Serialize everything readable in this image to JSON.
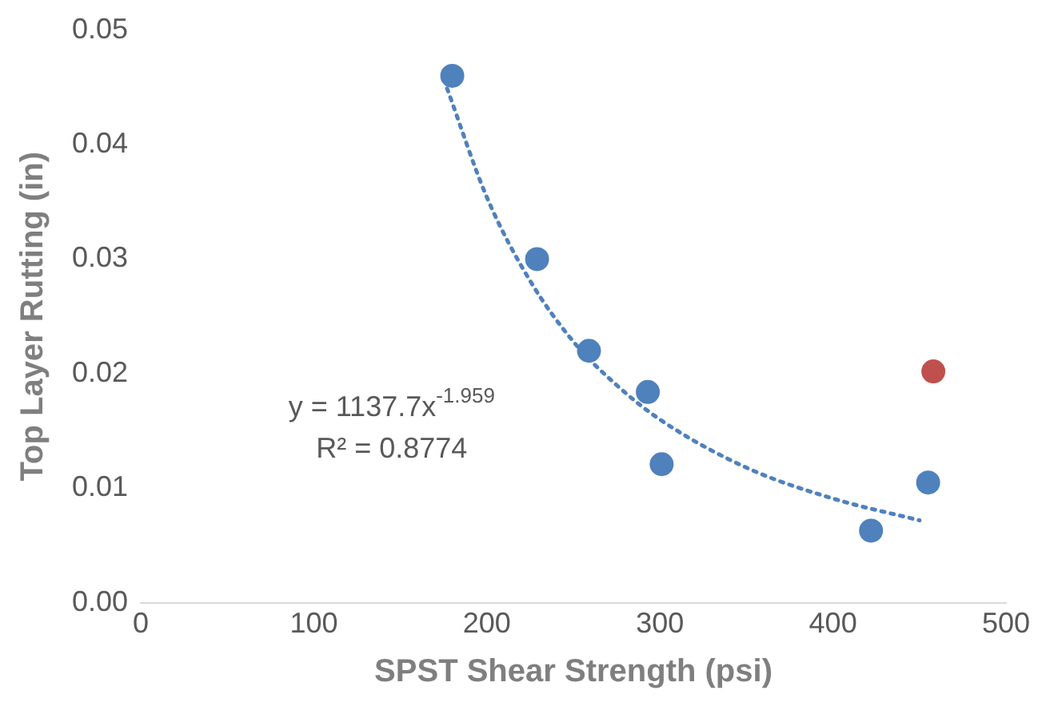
{
  "chart_data": {
    "type": "scatter",
    "xlabel": "SPST Shear Strength (psi)",
    "ylabel": "Top Layer Rutting (in)",
    "xlim": [
      0,
      500
    ],
    "xticks": [
      0,
      100,
      200,
      300,
      400,
      500
    ],
    "ylim": [
      0,
      0.05
    ],
    "yticks": [
      {
        "value": 0,
        "label": "0.00"
      },
      {
        "value": 0.01,
        "label": "0.01"
      },
      {
        "value": 0.02,
        "label": "0.02"
      },
      {
        "value": 0.03,
        "label": "0.03"
      },
      {
        "value": 0.04,
        "label": "0.04"
      },
      {
        "value": 0.05,
        "label": "0.05"
      }
    ],
    "grid": false,
    "legend": false,
    "marker": "circle",
    "series": [
      {
        "color": "#4f81bd",
        "x": [
          180,
          229,
          259,
          293,
          301,
          422,
          455
        ],
        "values": [
          0.046,
          0.03,
          0.022,
          0.0184,
          0.0121,
          0.0063,
          0.0105
        ]
      },
      {
        "color": "#c0504d",
        "x": [
          458
        ],
        "values": [
          0.0202
        ]
      },
      {
        "type": "line",
        "line_style": "dotted",
        "marker": "none",
        "color": "#4f81bd",
        "x": [
          177,
          200,
          225,
          250,
          275,
          300,
          350,
          400,
          450
        ],
        "values": [
          0.0449,
          0.0354,
          0.0281,
          0.0228,
          0.019,
          0.016,
          0.0118,
          0.0091,
          0.0072
        ]
      }
    ],
    "annotations": [
      "y = 1137.7x$^{-1.959}$",
      "R² = 0.8774"
    ]
  }
}
